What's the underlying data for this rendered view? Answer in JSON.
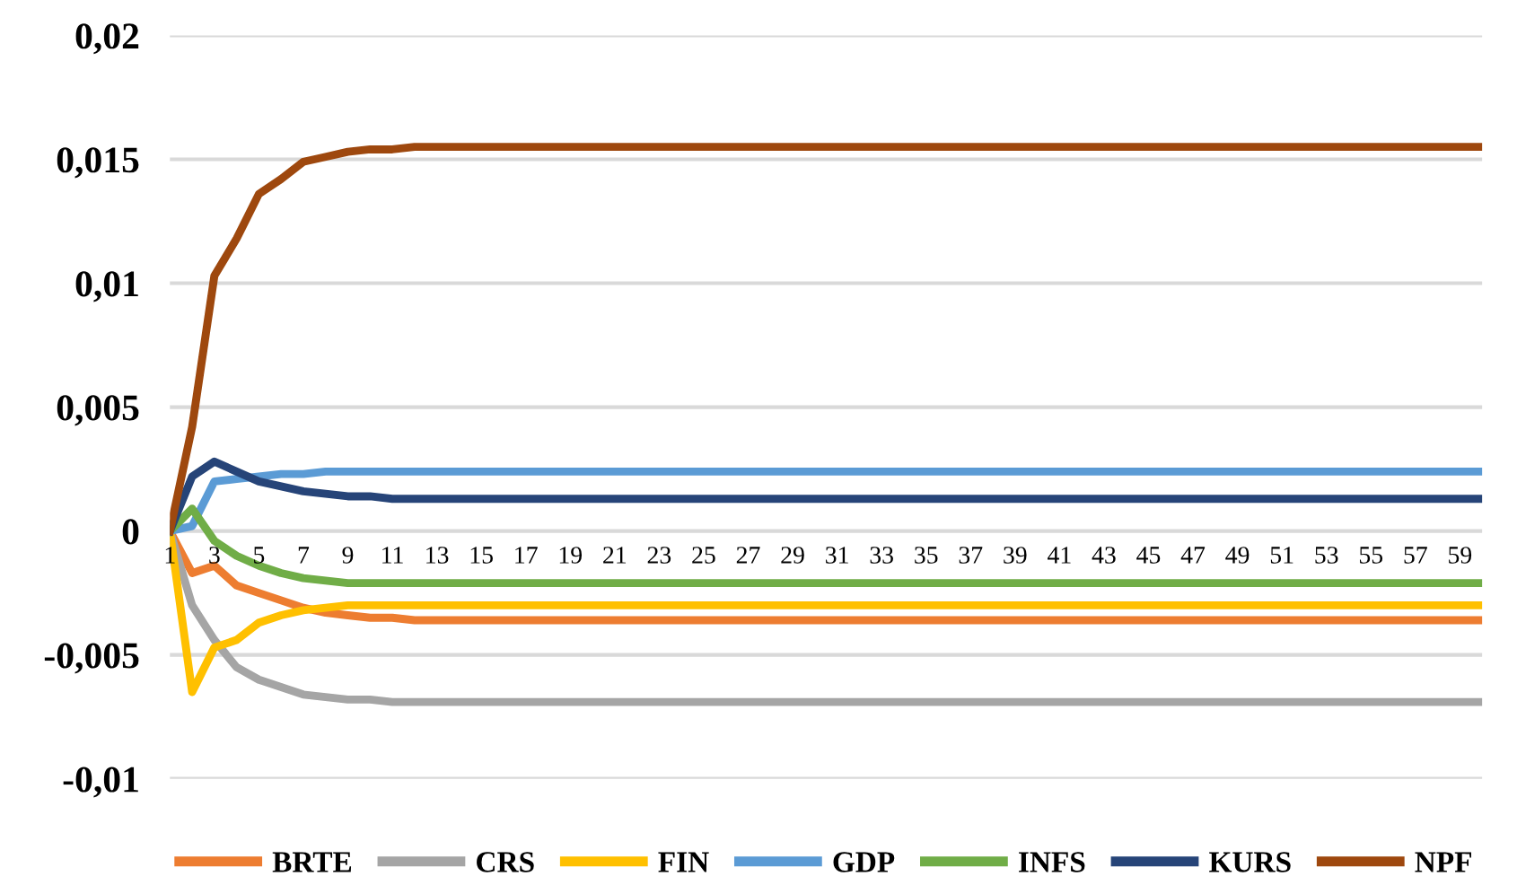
{
  "chart_data": {
    "type": "line",
    "categories": [
      "1",
      null,
      "3",
      null,
      "5",
      null,
      "7",
      null,
      "9",
      null,
      "11",
      null,
      "13",
      null,
      "15",
      null,
      "17",
      null,
      "19",
      null,
      "21",
      null,
      "23",
      null,
      "25",
      null,
      "27",
      null,
      "29",
      null,
      "31",
      null,
      "33",
      null,
      "35",
      null,
      "37",
      null,
      "39",
      null,
      "41",
      null,
      "43",
      null,
      "45",
      null,
      "47",
      null,
      "49",
      null,
      "51",
      null,
      "53",
      null,
      "55",
      null,
      "57",
      null,
      "59",
      null
    ],
    "series": [
      {
        "name": "BRTE",
        "color": "#ed7d31",
        "values": [
          0,
          -0.0017,
          -0.0014,
          -0.0022,
          -0.0025,
          -0.0028,
          -0.0031,
          -0.0033,
          -0.0034,
          -0.0035,
          -0.0035,
          -0.0036,
          -0.0036,
          -0.0036,
          -0.0036,
          -0.0036,
          -0.0036,
          -0.0036,
          -0.0036,
          -0.0036,
          -0.0036,
          -0.0036,
          -0.0036,
          -0.0036,
          -0.0036,
          -0.0036,
          -0.0036,
          -0.0036,
          -0.0036,
          -0.0036,
          -0.0036,
          -0.0036,
          -0.0036,
          -0.0036,
          -0.0036,
          -0.0036,
          -0.0036,
          -0.0036,
          -0.0036,
          -0.0036,
          -0.0036,
          -0.0036,
          -0.0036,
          -0.0036,
          -0.0036,
          -0.0036,
          -0.0036,
          -0.0036,
          -0.0036,
          -0.0036,
          -0.0036,
          -0.0036,
          -0.0036,
          -0.0036,
          -0.0036,
          -0.0036,
          -0.0036,
          -0.0036,
          -0.0036,
          -0.0036
        ]
      },
      {
        "name": "CRS",
        "color": "#a5a5a5",
        "values": [
          0,
          -0.003,
          -0.0044,
          -0.0055,
          -0.006,
          -0.0063,
          -0.0066,
          -0.0067,
          -0.0068,
          -0.0068,
          -0.0069,
          -0.0069,
          -0.0069,
          -0.0069,
          -0.0069,
          -0.0069,
          -0.0069,
          -0.0069,
          -0.0069,
          -0.0069,
          -0.0069,
          -0.0069,
          -0.0069,
          -0.0069,
          -0.0069,
          -0.0069,
          -0.0069,
          -0.0069,
          -0.0069,
          -0.0069,
          -0.0069,
          -0.0069,
          -0.0069,
          -0.0069,
          -0.0069,
          -0.0069,
          -0.0069,
          -0.0069,
          -0.0069,
          -0.0069,
          -0.0069,
          -0.0069,
          -0.0069,
          -0.0069,
          -0.0069,
          -0.0069,
          -0.0069,
          -0.0069,
          -0.0069,
          -0.0069,
          -0.0069,
          -0.0069,
          -0.0069,
          -0.0069,
          -0.0069,
          -0.0069,
          -0.0069,
          -0.0069,
          -0.0069,
          -0.0069
        ]
      },
      {
        "name": "FIN",
        "color": "#ffc000",
        "values": [
          0,
          -0.0065,
          -0.0047,
          -0.0044,
          -0.0037,
          -0.0034,
          -0.0032,
          -0.0031,
          -0.003,
          -0.003,
          -0.003,
          -0.003,
          -0.003,
          -0.003,
          -0.003,
          -0.003,
          -0.003,
          -0.003,
          -0.003,
          -0.003,
          -0.003,
          -0.003,
          -0.003,
          -0.003,
          -0.003,
          -0.003,
          -0.003,
          -0.003,
          -0.003,
          -0.003,
          -0.003,
          -0.003,
          -0.003,
          -0.003,
          -0.003,
          -0.003,
          -0.003,
          -0.003,
          -0.003,
          -0.003,
          -0.003,
          -0.003,
          -0.003,
          -0.003,
          -0.003,
          -0.003,
          -0.003,
          -0.003,
          -0.003,
          -0.003,
          -0.003,
          -0.003,
          -0.003,
          -0.003,
          -0.003,
          -0.003,
          -0.003,
          -0.003,
          -0.003,
          -0.003
        ]
      },
      {
        "name": "GDP",
        "color": "#5b9bd5",
        "values": [
          0,
          0.0002,
          0.002,
          0.0021,
          0.0022,
          0.0023,
          0.0023,
          0.0024,
          0.0024,
          0.0024,
          0.0024,
          0.0024,
          0.0024,
          0.0024,
          0.0024,
          0.0024,
          0.0024,
          0.0024,
          0.0024,
          0.0024,
          0.0024,
          0.0024,
          0.0024,
          0.0024,
          0.0024,
          0.0024,
          0.0024,
          0.0024,
          0.0024,
          0.0024,
          0.0024,
          0.0024,
          0.0024,
          0.0024,
          0.0024,
          0.0024,
          0.0024,
          0.0024,
          0.0024,
          0.0024,
          0.0024,
          0.0024,
          0.0024,
          0.0024,
          0.0024,
          0.0024,
          0.0024,
          0.0024,
          0.0024,
          0.0024,
          0.0024,
          0.0024,
          0.0024,
          0.0024,
          0.0024,
          0.0024,
          0.0024,
          0.0024,
          0.0024,
          0.0024
        ]
      },
      {
        "name": "INFS",
        "color": "#70ad47",
        "values": [
          0,
          0.0009,
          -0.0004,
          -0.001,
          -0.0014,
          -0.0017,
          -0.0019,
          -0.002,
          -0.0021,
          -0.0021,
          -0.0021,
          -0.0021,
          -0.0021,
          -0.0021,
          -0.0021,
          -0.0021,
          -0.0021,
          -0.0021,
          -0.0021,
          -0.0021,
          -0.0021,
          -0.0021,
          -0.0021,
          -0.0021,
          -0.0021,
          -0.0021,
          -0.0021,
          -0.0021,
          -0.0021,
          -0.0021,
          -0.0021,
          -0.0021,
          -0.0021,
          -0.0021,
          -0.0021,
          -0.0021,
          -0.0021,
          -0.0021,
          -0.0021,
          -0.0021,
          -0.0021,
          -0.0021,
          -0.0021,
          -0.0021,
          -0.0021,
          -0.0021,
          -0.0021,
          -0.0021,
          -0.0021,
          -0.0021,
          -0.0021,
          -0.0021,
          -0.0021,
          -0.0021,
          -0.0021,
          -0.0021,
          -0.0021,
          -0.0021,
          -0.0021,
          -0.0021
        ]
      },
      {
        "name": "KURS",
        "color": "#264478",
        "values": [
          0,
          0.0022,
          0.0028,
          0.0024,
          0.002,
          0.0018,
          0.0016,
          0.0015,
          0.0014,
          0.0014,
          0.0013,
          0.0013,
          0.0013,
          0.0013,
          0.0013,
          0.0013,
          0.0013,
          0.0013,
          0.0013,
          0.0013,
          0.0013,
          0.0013,
          0.0013,
          0.0013,
          0.0013,
          0.0013,
          0.0013,
          0.0013,
          0.0013,
          0.0013,
          0.0013,
          0.0013,
          0.0013,
          0.0013,
          0.0013,
          0.0013,
          0.0013,
          0.0013,
          0.0013,
          0.0013,
          0.0013,
          0.0013,
          0.0013,
          0.0013,
          0.0013,
          0.0013,
          0.0013,
          0.0013,
          0.0013,
          0.0013,
          0.0013,
          0.0013,
          0.0013,
          0.0013,
          0.0013,
          0.0013,
          0.0013,
          0.0013,
          0.0013,
          0.0013
        ]
      },
      {
        "name": "NPF",
        "color": "#9e480e",
        "values": [
          0,
          0.0042,
          0.0103,
          0.0118,
          0.0136,
          0.0142,
          0.0149,
          0.0151,
          0.0153,
          0.0154,
          0.0154,
          0.0155,
          0.0155,
          0.0155,
          0.0155,
          0.0155,
          0.0155,
          0.0155,
          0.0155,
          0.0155,
          0.0155,
          0.0155,
          0.0155,
          0.0155,
          0.0155,
          0.0155,
          0.0155,
          0.0155,
          0.0155,
          0.0155,
          0.0155,
          0.0155,
          0.0155,
          0.0155,
          0.0155,
          0.0155,
          0.0155,
          0.0155,
          0.0155,
          0.0155,
          0.0155,
          0.0155,
          0.0155,
          0.0155,
          0.0155,
          0.0155,
          0.0155,
          0.0155,
          0.0155,
          0.0155,
          0.0155,
          0.0155,
          0.0155,
          0.0155,
          0.0155,
          0.0155,
          0.0155,
          0.0155,
          0.0155,
          0.0155
        ]
      }
    ],
    "ylim": [
      -0.01,
      0.02
    ],
    "yticks": [
      {
        "value": -0.01,
        "label": "-0,01"
      },
      {
        "value": -0.005,
        "label": "-0,005"
      },
      0,
      {
        "value": 0.005,
        "label": "0,005"
      },
      {
        "value": 0.01,
        "label": "0,01"
      },
      {
        "value": 0.015,
        "label": "0,015"
      },
      {
        "value": 0.02,
        "label": "0,02"
      }
    ],
    "grid": "y",
    "legend": "bottom",
    "marker": "none",
    "line_style": "solid"
  }
}
